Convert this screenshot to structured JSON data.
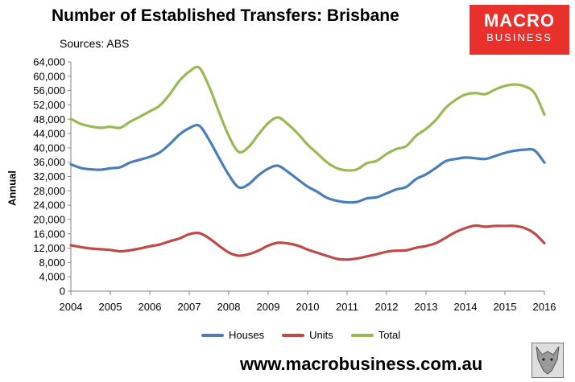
{
  "header": {
    "title": "Number of Established Transfers: Brisbane",
    "source": "Sources: ABS"
  },
  "logo": {
    "line1": "MACRO",
    "line2": "BUSINESS"
  },
  "footer": {
    "website": "www.macrobusiness.com.au"
  },
  "colors": {
    "houses": "#4a7ebb",
    "units": "#be4b48",
    "total": "#98b954",
    "axis": "#868686",
    "logo_bg": "#e9302b"
  },
  "chart_data": {
    "type": "line",
    "title": "Number of Established Transfers: Brisbane",
    "ylabel": "Annual",
    "xlabel": "",
    "ylim": [
      0,
      64000
    ],
    "xlim": [
      2004,
      2016
    ],
    "yticks": [
      0,
      4000,
      8000,
      12000,
      16000,
      20000,
      24000,
      28000,
      32000,
      36000,
      40000,
      44000,
      48000,
      52000,
      56000,
      60000,
      64000
    ],
    "ytick_labels": [
      "0",
      "4,000",
      "8,000",
      "12,000",
      "16,000",
      "20,000",
      "24,000",
      "28,000",
      "32,000",
      "36,000",
      "40,000",
      "44,000",
      "48,000",
      "52,000",
      "56,000",
      "60,000",
      "64,000"
    ],
    "xticks": [
      2004,
      2005,
      2006,
      2007,
      2008,
      2009,
      2010,
      2011,
      2012,
      2013,
      2014,
      2015,
      2016
    ],
    "xtick_labels": [
      "2004",
      "2005",
      "2006",
      "2007",
      "2008",
      "2009",
      "2010",
      "2011",
      "2012",
      "2013",
      "2014",
      "2015",
      "2016"
    ],
    "grid": false,
    "legend_position": "bottom",
    "x": [
      2004.0,
      2004.25,
      2004.5,
      2004.75,
      2005.0,
      2005.25,
      2005.5,
      2005.75,
      2006.0,
      2006.25,
      2006.5,
      2006.75,
      2007.0,
      2007.25,
      2007.5,
      2007.75,
      2008.0,
      2008.25,
      2008.5,
      2008.75,
      2009.0,
      2009.25,
      2009.5,
      2009.75,
      2010.0,
      2010.25,
      2010.5,
      2010.75,
      2011.0,
      2011.25,
      2011.5,
      2011.75,
      2012.0,
      2012.25,
      2012.5,
      2012.75,
      2013.0,
      2013.25,
      2013.5,
      2013.75,
      2014.0,
      2014.25,
      2014.5,
      2014.75,
      2015.0,
      2015.25,
      2015.5,
      2015.75,
      2016.0
    ],
    "series": [
      {
        "name": "Houses",
        "color": "#4a7ebb",
        "values": [
          35400,
          34400,
          34000,
          33900,
          34300,
          34600,
          35900,
          36700,
          37500,
          38700,
          41000,
          43700,
          45500,
          46200,
          42300,
          37300,
          32500,
          29000,
          29800,
          32300,
          34200,
          35000,
          33300,
          31200,
          29200,
          27700,
          26000,
          25200,
          24800,
          24900,
          25900,
          26200,
          27300,
          28400,
          29100,
          31300,
          32600,
          34400,
          36300,
          36900,
          37300,
          37100,
          36900,
          37700,
          38600,
          39200,
          39500,
          39300,
          35900
        ]
      },
      {
        "name": "Units",
        "color": "#be4b48",
        "values": [
          12800,
          12300,
          11900,
          11700,
          11500,
          11100,
          11400,
          11900,
          12500,
          13000,
          13900,
          14700,
          15900,
          16200,
          14800,
          12700,
          10800,
          9900,
          10300,
          11300,
          12700,
          13500,
          13300,
          12700,
          11600,
          10700,
          9800,
          9000,
          8800,
          9100,
          9700,
          10300,
          11000,
          11300,
          11400,
          12100,
          12600,
          13400,
          14900,
          16500,
          17600,
          18300,
          18000,
          18200,
          18200,
          18200,
          17600,
          16100,
          13400
        ]
      },
      {
        "name": "Total",
        "color": "#98b954",
        "values": [
          48100,
          46700,
          46000,
          45600,
          45900,
          45600,
          47300,
          48700,
          50200,
          51800,
          54900,
          58700,
          61300,
          62400,
          57200,
          50100,
          43400,
          38900,
          40200,
          43700,
          46900,
          48500,
          46600,
          44000,
          40900,
          38400,
          35900,
          34300,
          33700,
          34000,
          35700,
          36400,
          38300,
          39700,
          40500,
          43400,
          45300,
          47800,
          51200,
          53400,
          54900,
          55300,
          55000,
          56300,
          57300,
          57700,
          57200,
          55300,
          49300
        ]
      }
    ]
  }
}
